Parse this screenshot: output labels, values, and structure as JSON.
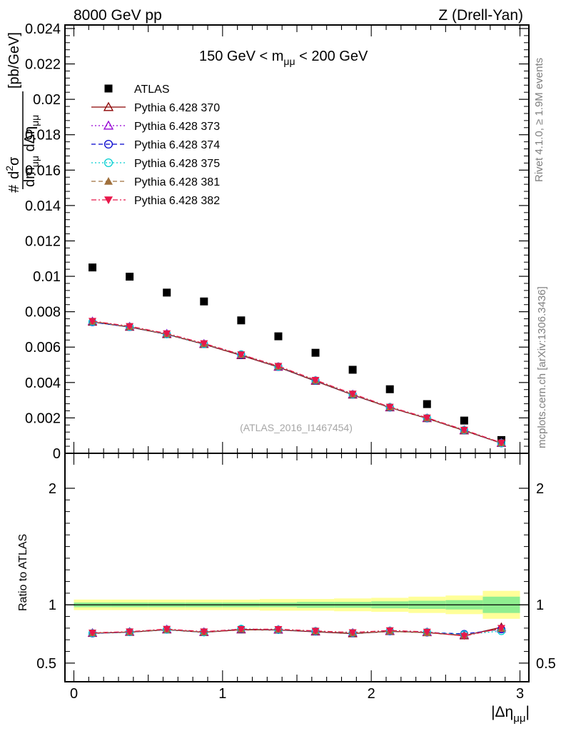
{
  "header": {
    "left": "8000 GeV pp",
    "right": "Z (Drell-Yan)",
    "cut_prefix": "150 GeV < m",
    "cut_sub": "μμ",
    "cut_suffix": " < 200 GeV",
    "watermark": "(ATLAS_2016_I1467454)"
  },
  "side": {
    "rivet": "Rivet 4.1.0, ≥ 1.9M events",
    "mcplots": "mcplots.cern.ch [arXiv:1306.3436]"
  },
  "axes": {
    "ylabel_main": "#d²σ/dm_μμ dΔη_μμ [pb/GeV]",
    "ylabel_num_a": "#",
    "ylabel_num_b": "d",
    "ylabel_num_sup": "2",
    "ylabel_num_c": "σ",
    "ylabel_den_a": "dm",
    "ylabel_den_sub": "μμ",
    "ylabel_den_b": " dΔη",
    "ylabel_den_sub2": "μμ",
    "ylabel_unit": "[pb/GeV]",
    "ylabel_ratio": "Ratio to ATLAS",
    "xlabel": "|Δη_μμ|",
    "xlabel_a": "|Δη",
    "xlabel_sub": "μμ",
    "xlabel_b": "|"
  },
  "chart_data": [
    {
      "type": "scatter",
      "panel": "main",
      "xlim": [
        -0.06,
        3.06
      ],
      "ylim": [
        0,
        0.0242
      ],
      "yticks": [
        "0",
        "0.002",
        "0.004",
        "0.006",
        "0.008",
        "0.01",
        "0.012",
        "0.014",
        "0.016",
        "0.018",
        "0.02",
        "0.022",
        "0.024"
      ],
      "ytick_values": [
        0,
        0.002,
        0.004,
        0.006,
        0.008,
        0.01,
        0.012,
        0.014,
        0.016,
        0.018,
        0.02,
        0.022,
        0.024
      ],
      "x": [
        0.125,
        0.375,
        0.625,
        0.875,
        1.125,
        1.375,
        1.625,
        1.875,
        2.125,
        2.375,
        2.625,
        2.875
      ],
      "series": [
        {
          "name": "ATLAS",
          "color": "#000000",
          "marker": "square",
          "line": "none",
          "values": [
            0.0105,
            0.00998,
            0.00908,
            0.00858,
            0.00751,
            0.00661,
            0.00568,
            0.00472,
            0.00362,
            0.00278,
            0.00185,
            0.00075
          ]
        },
        {
          "name": "Pythia 6.428 370",
          "color": "#8b0000",
          "marker": "triangle-open",
          "line": "solid",
          "values": [
            0.00742,
            0.00713,
            0.00672,
            0.00616,
            0.00553,
            0.00487,
            0.00408,
            0.0033,
            0.00258,
            0.00197,
            0.00128,
            0.00057
          ]
        },
        {
          "name": "Pythia 6.428 373",
          "color": "#9400d3",
          "marker": "triangle-open",
          "line": "dotted",
          "values": [
            0.00746,
            0.00716,
            0.00676,
            0.00619,
            0.00556,
            0.00489,
            0.00411,
            0.00333,
            0.0026,
            0.00199,
            0.00131,
            0.00059
          ]
        },
        {
          "name": "Pythia 6.428 374",
          "color": "#0000cd",
          "marker": "circle-open",
          "line": "dashed",
          "values": [
            0.00741,
            0.00714,
            0.00673,
            0.00617,
            0.00556,
            0.00489,
            0.0041,
            0.00332,
            0.00259,
            0.00198,
            0.0013,
            0.00057
          ]
        },
        {
          "name": "Pythia 6.428 375",
          "color": "#00ced1",
          "marker": "circle-open",
          "line": "dotted",
          "values": [
            0.00743,
            0.00715,
            0.00673,
            0.00617,
            0.00559,
            0.0049,
            0.00412,
            0.00333,
            0.00261,
            0.002,
            0.00131,
            0.00058
          ]
        },
        {
          "name": "Pythia 6.428 381",
          "color": "#a0703c",
          "marker": "triangle-filled",
          "line": "dashed",
          "values": [
            0.00745,
            0.00715,
            0.00674,
            0.00618,
            0.00556,
            0.0049,
            0.00411,
            0.00333,
            0.00259,
            0.00198,
            0.0013,
            0.00058
          ]
        },
        {
          "name": "Pythia 6.428 382",
          "color": "#e8174a",
          "marker": "triangle-down-filled",
          "line": "dashdot",
          "values": [
            0.00747,
            0.00718,
            0.00677,
            0.00621,
            0.00558,
            0.00493,
            0.00414,
            0.00336,
            0.00262,
            0.00201,
            0.00132,
            0.0006
          ]
        }
      ]
    },
    {
      "type": "line",
      "panel": "ratio",
      "xlim": [
        -0.06,
        3.06
      ],
      "ylim": [
        0.34,
        2.3
      ],
      "yticks": [
        "0.5",
        "1",
        "2"
      ],
      "ytick_values": [
        0.5,
        1,
        2
      ],
      "xticks": [
        "0",
        "1",
        "2",
        "3"
      ],
      "xtick_values": [
        0,
        1,
        2,
        3
      ],
      "x": [
        0.125,
        0.375,
        0.625,
        0.875,
        1.125,
        1.375,
        1.625,
        1.875,
        2.125,
        2.375,
        2.625,
        2.875
      ],
      "bins": [
        0,
        0.25,
        0.5,
        0.75,
        1.0,
        1.25,
        1.5,
        1.75,
        2.0,
        2.25,
        2.5,
        2.75,
        3.0
      ],
      "band_stat_halfwidth": [
        0.02,
        0.02,
        0.02,
        0.02,
        0.02,
        0.02,
        0.025,
        0.025,
        0.03,
        0.035,
        0.04,
        0.07
      ],
      "band_total_halfwidth": [
        0.045,
        0.045,
        0.045,
        0.045,
        0.045,
        0.05,
        0.05,
        0.055,
        0.06,
        0.07,
        0.08,
        0.12
      ],
      "series": [
        {
          "name": "Pythia 6.428 370",
          "values": [
            0.756,
            0.765,
            0.786,
            0.764,
            0.786,
            0.784,
            0.768,
            0.753,
            0.772,
            0.762,
            0.735,
            0.808
          ]
        },
        {
          "name": "Pythia 6.428 373",
          "values": [
            0.759,
            0.768,
            0.79,
            0.767,
            0.789,
            0.787,
            0.772,
            0.76,
            0.776,
            0.766,
            0.742,
            0.795
          ]
        },
        {
          "name": "Pythia 6.428 374",
          "values": [
            0.755,
            0.766,
            0.787,
            0.765,
            0.79,
            0.785,
            0.771,
            0.756,
            0.773,
            0.763,
            0.75,
            0.79
          ]
        },
        {
          "name": "Pythia 6.428 375",
          "values": [
            0.757,
            0.767,
            0.787,
            0.765,
            0.794,
            0.787,
            0.774,
            0.759,
            0.777,
            0.766,
            0.745,
            0.775
          ]
        },
        {
          "name": "Pythia 6.428 381",
          "values": [
            0.758,
            0.767,
            0.788,
            0.766,
            0.788,
            0.787,
            0.772,
            0.757,
            0.773,
            0.76,
            0.74,
            0.795
          ]
        },
        {
          "name": "Pythia 6.428 382",
          "values": [
            0.76,
            0.77,
            0.792,
            0.77,
            0.791,
            0.791,
            0.776,
            0.763,
            0.78,
            0.768,
            0.732,
            0.8
          ]
        }
      ]
    }
  ]
}
